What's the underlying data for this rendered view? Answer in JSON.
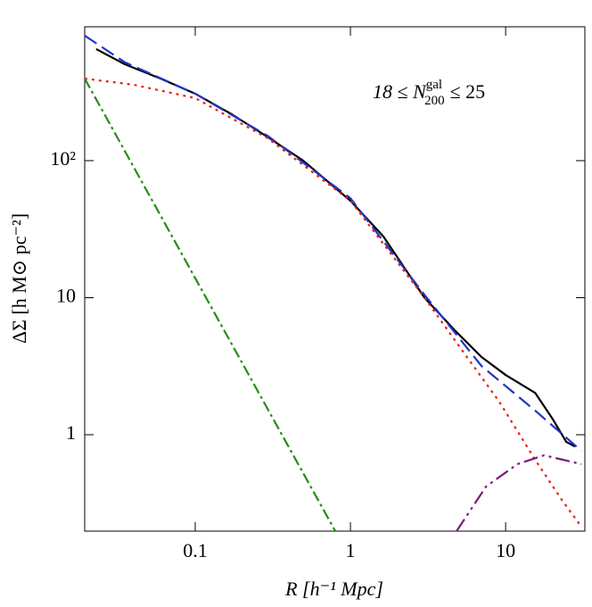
{
  "chart_data": {
    "type": "line",
    "x_label": "R [h⁻¹ Mpc]",
    "y_label": "ΔΣ [h M⊙ pc⁻²]",
    "annotation": {
      "lhs": "18 ≤ N",
      "sup": "gal",
      "sub": "200",
      "rhs": "≤ 25"
    },
    "log_x": true,
    "log_y": true,
    "xlim": [
      0.0194,
      32.4
    ],
    "ylim": [
      0.198,
      948
    ],
    "xticks": [
      0.1,
      1,
      10
    ],
    "yticks": [
      1,
      10,
      {
        "value": 100,
        "label": "10²"
      }
    ],
    "series": [
      {
        "color": "#000000",
        "dash": "none",
        "width": 2.2,
        "x": [
          0.023,
          0.0352,
          0.0597,
          0.1,
          0.172,
          0.3,
          0.496,
          1,
          1.63,
          3.0,
          4.7,
          7.0,
          10,
          15.5,
          20.2,
          24.6,
          28
        ],
        "values": [
          652,
          505,
          397,
          308,
          218,
          146,
          100,
          51,
          28,
          10,
          5.78,
          3.69,
          2.73,
          2.02,
          1.29,
          0.887,
          0.82
        ]
      },
      {
        "color": "#1f35c8",
        "dash": "16,7",
        "width": 2.2,
        "x": [
          0.0194,
          0.0352,
          0.1,
          0.292,
          1,
          3.0,
          7.0,
          15.5,
          30.8
        ],
        "values": [
          817,
          522,
          308,
          152,
          53.2,
          10.5,
          3.17,
          1.5,
          0.763
        ]
      },
      {
        "color": "#e8231c",
        "dash": "3,5",
        "width": 2.2,
        "x": [
          0.0194,
          0.0401,
          0.1,
          0.292,
          1,
          3.0,
          5.37,
          9.1,
          15.5,
          23,
          30.8
        ],
        "values": [
          397,
          358,
          286,
          146,
          51,
          10,
          3.98,
          1.74,
          0.657,
          0.335,
          0.213
        ]
      },
      {
        "color": "#2a8a1a",
        "dash": "12,4,3,4",
        "width": 2.2,
        "x": [
          0.0194,
          0.799
        ],
        "values": [
          397,
          0.198
        ]
      },
      {
        "color": "#7b1a7b",
        "dash": "16,5,3,5,3,5",
        "width": 2.2,
        "x": [
          4.83,
          7.48,
          11.9,
          17.7,
          30.8
        ],
        "values": [
          0.198,
          0.419,
          0.61,
          0.708,
          0.61
        ]
      }
    ]
  }
}
